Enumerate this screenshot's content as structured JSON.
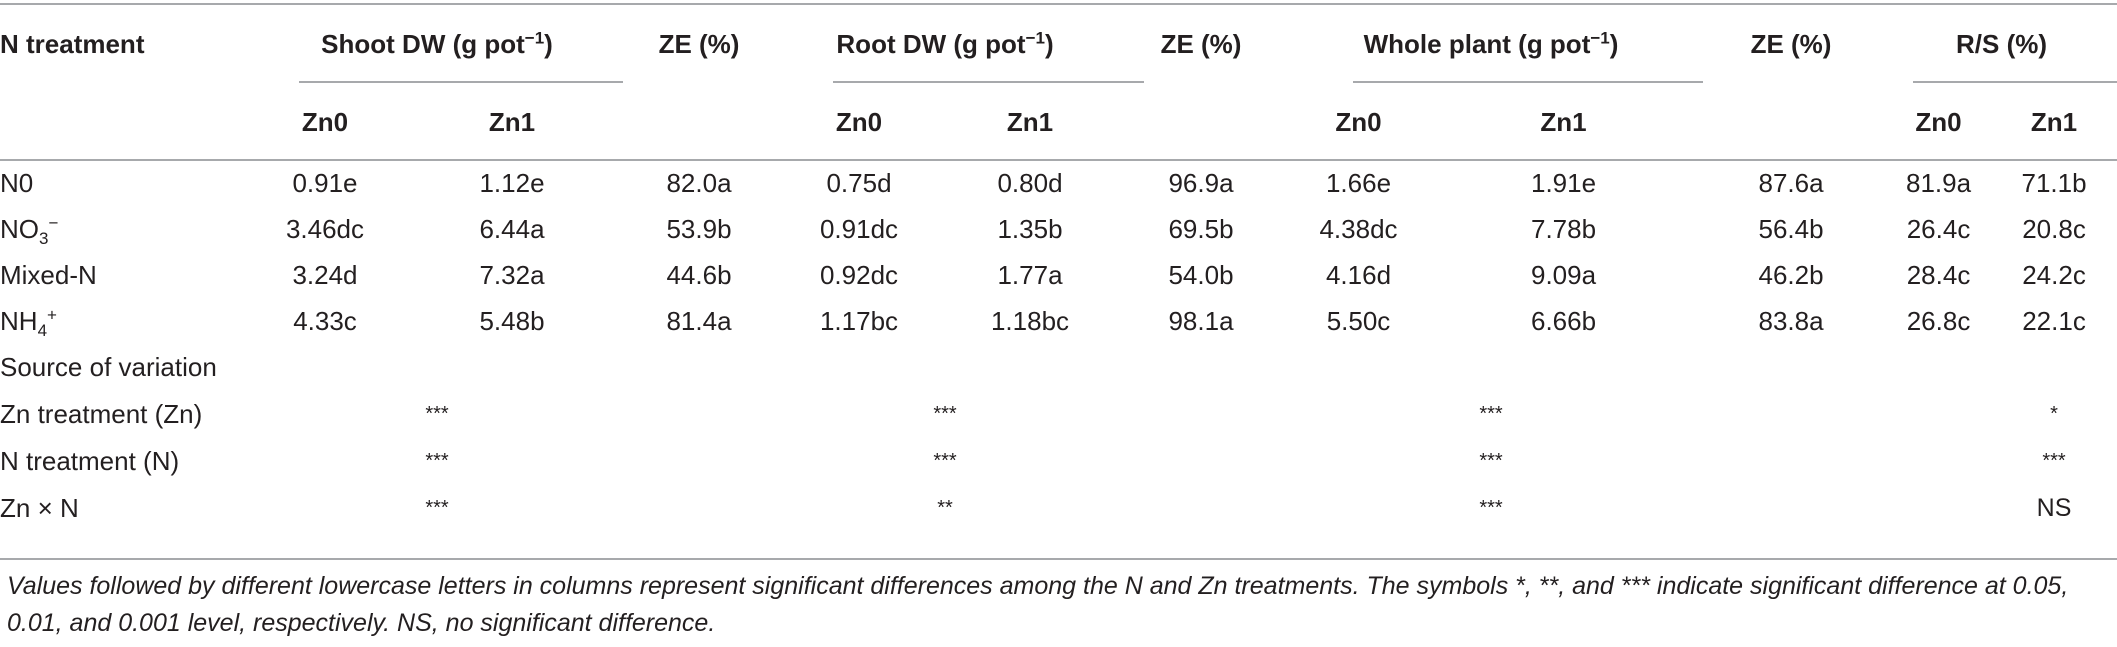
{
  "table": {
    "headers": {
      "n_treatment": "N treatment",
      "shoot_dw": "Shoot DW (g pot",
      "shoot_dw_sup": "−1",
      "shoot_dw_close": ")",
      "ze1": "ZE (%)",
      "root_dw": "Root DW (g pot",
      "root_dw_sup": "−1",
      "root_dw_close": ")",
      "ze2": "ZE (%)",
      "whole_plant": "Whole plant (g pot",
      "whole_plant_sup": "−1",
      "whole_plant_close": ")",
      "ze3": "ZE (%)",
      "rs": "R/S (%)",
      "zn0": "Zn0",
      "zn1": "Zn1"
    },
    "rows": [
      {
        "label": "N0",
        "label_sub": "",
        "label_sup": "",
        "shoot_zn0": "0.91e",
        "shoot_zn1": "1.12e",
        "ze1": "82.0a",
        "root_zn0": "0.75d",
        "root_zn1": "0.80d",
        "ze2": "96.9a",
        "whole_zn0": "1.66e",
        "whole_zn1": "1.91e",
        "ze3": "87.6a",
        "rs_zn0": "81.9a",
        "rs_zn1": "71.1b"
      },
      {
        "label": "NO",
        "label_sub": "3",
        "label_sup": "−",
        "shoot_zn0": "3.46dc",
        "shoot_zn1": "6.44a",
        "ze1": "53.9b",
        "root_zn0": "0.91dc",
        "root_zn1": "1.35b",
        "ze2": "69.5b",
        "whole_zn0": "4.38dc",
        "whole_zn1": "7.78b",
        "ze3": "56.4b",
        "rs_zn0": "26.4c",
        "rs_zn1": "20.8c"
      },
      {
        "label": "Mixed-N",
        "label_sub": "",
        "label_sup": "",
        "shoot_zn0": "3.24d",
        "shoot_zn1": "7.32a",
        "ze1": "44.6b",
        "root_zn0": "0.92dc",
        "root_zn1": "1.77a",
        "ze2": "54.0b",
        "whole_zn0": "4.16d",
        "whole_zn1": "9.09a",
        "ze3": "46.2b",
        "rs_zn0": "28.4c",
        "rs_zn1": "24.2c"
      },
      {
        "label": "NH",
        "label_sub": "4",
        "label_sup": "+",
        "shoot_zn0": "4.33c",
        "shoot_zn1": "5.48b",
        "ze1": "81.4a",
        "root_zn0": "1.17bc",
        "root_zn1": "1.18bc",
        "ze2": "98.1a",
        "whole_zn0": "5.50c",
        "whole_zn1": "6.66b",
        "ze3": "83.8a",
        "rs_zn0": "26.8c",
        "rs_zn1": "22.1c"
      }
    ],
    "source_of_variation": "Source of variation",
    "variation_rows": [
      {
        "label": "Zn treatment (Zn)",
        "shoot": "***",
        "root": "***",
        "whole": "***",
        "rs": "*"
      },
      {
        "label": "N treatment (N)",
        "shoot": "***",
        "root": "***",
        "whole": "***",
        "rs": "***"
      },
      {
        "label": "Zn × N",
        "shoot": "***",
        "root": "**",
        "whole": "***",
        "rs": "NS"
      }
    ]
  },
  "footnote": "Values followed by different lowercase letters in columns represent significant differences among the N and Zn treatments. The symbols *, **, and *** indicate significant difference at 0.05, 0.01, and 0.001 level, respectively. NS, no significant difference.",
  "colors": {
    "text": "#231f20",
    "rule": "#a7a9ac"
  }
}
